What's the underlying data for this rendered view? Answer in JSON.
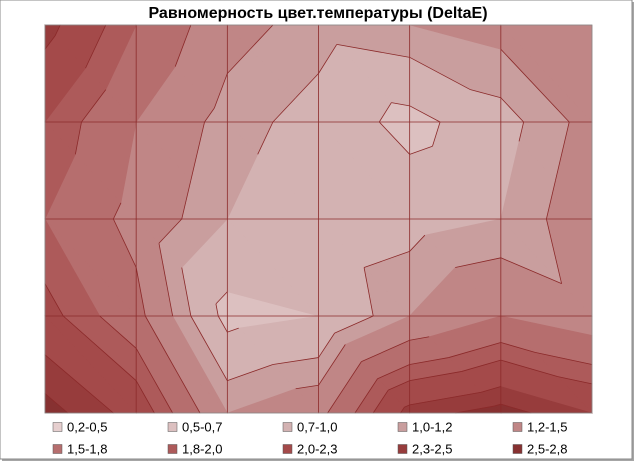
{
  "chart_data": {
    "type": "contour",
    "title": "Равномерность цвет.температуры (DeltaE)",
    "z": [
      [
        2.4,
        1.8,
        1.3,
        1.1,
        1.2,
        1.3,
        1.4
      ],
      [
        2.0,
        1.5,
        1.1,
        0.9,
        0.6,
        0.9,
        1.3
      ],
      [
        1.8,
        1.4,
        1.0,
        0.8,
        0.9,
        1.0,
        1.4
      ],
      [
        2.1,
        1.6,
        0.6,
        0.7,
        1.2,
        1.5,
        1.3
      ],
      [
        2.6,
        2.2,
        1.2,
        1.4,
        2.4,
        2.6,
        2.3
      ]
    ],
    "levels": [
      0.2,
      0.5,
      0.7,
      1.0,
      1.2,
      1.5,
      1.8,
      2.0,
      2.3,
      2.5,
      2.8
    ],
    "bands": [
      {
        "name": "0,2-0,5",
        "color": "#e6cfcf"
      },
      {
        "name": "0,5-0,7",
        "color": "#dcc0c0"
      },
      {
        "name": "0,7-1,0",
        "color": "#d3b2b2"
      },
      {
        "name": "1,0-1,2",
        "color": "#c99e9e"
      },
      {
        "name": "1,2-1,5",
        "color": "#c08686"
      },
      {
        "name": "1,5-1,8",
        "color": "#b66e6e"
      },
      {
        "name": "1,8-2,0",
        "color": "#ad5a5a"
      },
      {
        "name": "2,0-2,3",
        "color": "#a44a4a"
      },
      {
        "name": "2,3-2,5",
        "color": "#973c3c"
      },
      {
        "name": "2,5-2,8",
        "color": "#873131"
      }
    ],
    "line_color": "#8b2a2a"
  }
}
